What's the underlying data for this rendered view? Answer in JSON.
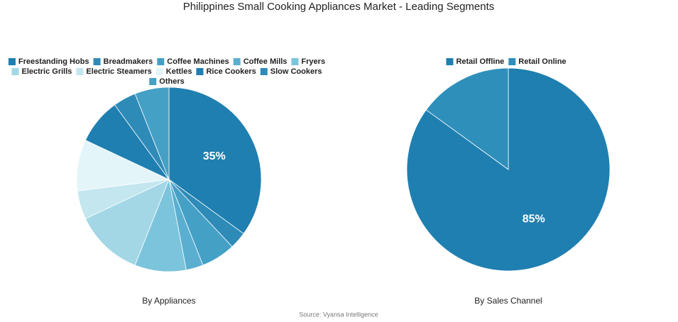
{
  "title": "Philippines Small Cooking Appliances Market - Leading Segments",
  "source": "Source: Vyansa Intelligence",
  "chart_data": [
    {
      "type": "pie",
      "subtitle": "By Appliances",
      "categories": [
        "Freestanding Hobs",
        "Breadmakers",
        "Coffee Machines",
        "Coffee Mills",
        "Fryers",
        "Electric Grills",
        "Electric Steamers",
        "Kettles",
        "Rice Cookers",
        "Slow Cookers",
        "Others"
      ],
      "values": [
        35,
        3,
        6,
        3,
        9,
        12,
        5,
        9,
        8,
        4,
        6
      ],
      "value_labels": [
        "35%",
        null,
        null,
        null,
        null,
        null,
        null,
        null,
        null,
        null,
        null
      ],
      "colors": [
        "#1f7fb0",
        "#2e8bb8",
        "#45a0c6",
        "#5aafd1",
        "#7cc4dc",
        "#a3d7e5",
        "#c3e6ef",
        "#e4f5fa",
        "#1f7fb0",
        "#2e8bb8",
        "#45a0c6"
      ],
      "legend": "top"
    },
    {
      "type": "pie",
      "subtitle": "By Sales Channel",
      "categories": [
        "Retail Offline",
        "Retail Online"
      ],
      "values": [
        85,
        15
      ],
      "value_labels": [
        "85%",
        null
      ],
      "colors": [
        "#1f7fb0",
        "#2e8fbb"
      ],
      "legend": "top"
    }
  ]
}
